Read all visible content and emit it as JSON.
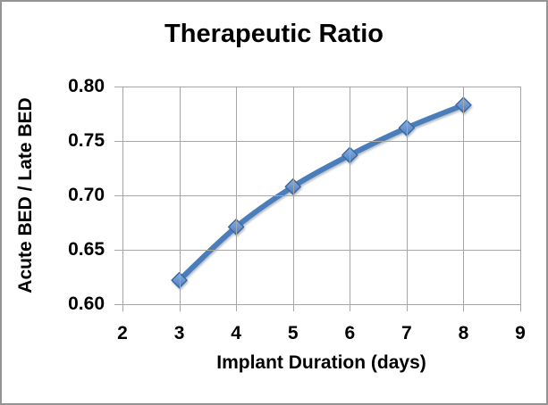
{
  "frame": {
    "border_color": "#949494",
    "background_color": "#ffffff"
  },
  "chart_data": {
    "type": "line",
    "title": "Therapeutic Ratio",
    "xlabel": "Implant Duration (days)",
    "ylabel": "Acute BED / Late BED",
    "x": [
      3,
      4,
      5,
      6,
      7,
      8
    ],
    "values": [
      0.622,
      0.671,
      0.708,
      0.737,
      0.762,
      0.783
    ],
    "xlim": [
      2,
      9
    ],
    "ylim": [
      0.6,
      0.8
    ],
    "x_tick_values": [
      2,
      3,
      4,
      5,
      6,
      7,
      8,
      9
    ],
    "x_tick_labels": [
      "2",
      "3",
      "4",
      "5",
      "6",
      "7",
      "8",
      "9"
    ],
    "y_tick_values": [
      0.6,
      0.65,
      0.7,
      0.75,
      0.8
    ],
    "y_tick_labels": [
      "0.60",
      "0.65",
      "0.70",
      "0.75",
      "0.80"
    ],
    "grid": true,
    "legend_position": "none",
    "line_smooth": true,
    "marker_shape": "diamond",
    "colors": {
      "line": "#4a7ebb",
      "marker_fill_top": "#8ab2e2",
      "marker_fill_bottom": "#4c7cba",
      "marker_border": "#3a67a2",
      "gridline": "#a6a6a6",
      "axis": "#a6a6a6",
      "text": "#000000"
    }
  }
}
